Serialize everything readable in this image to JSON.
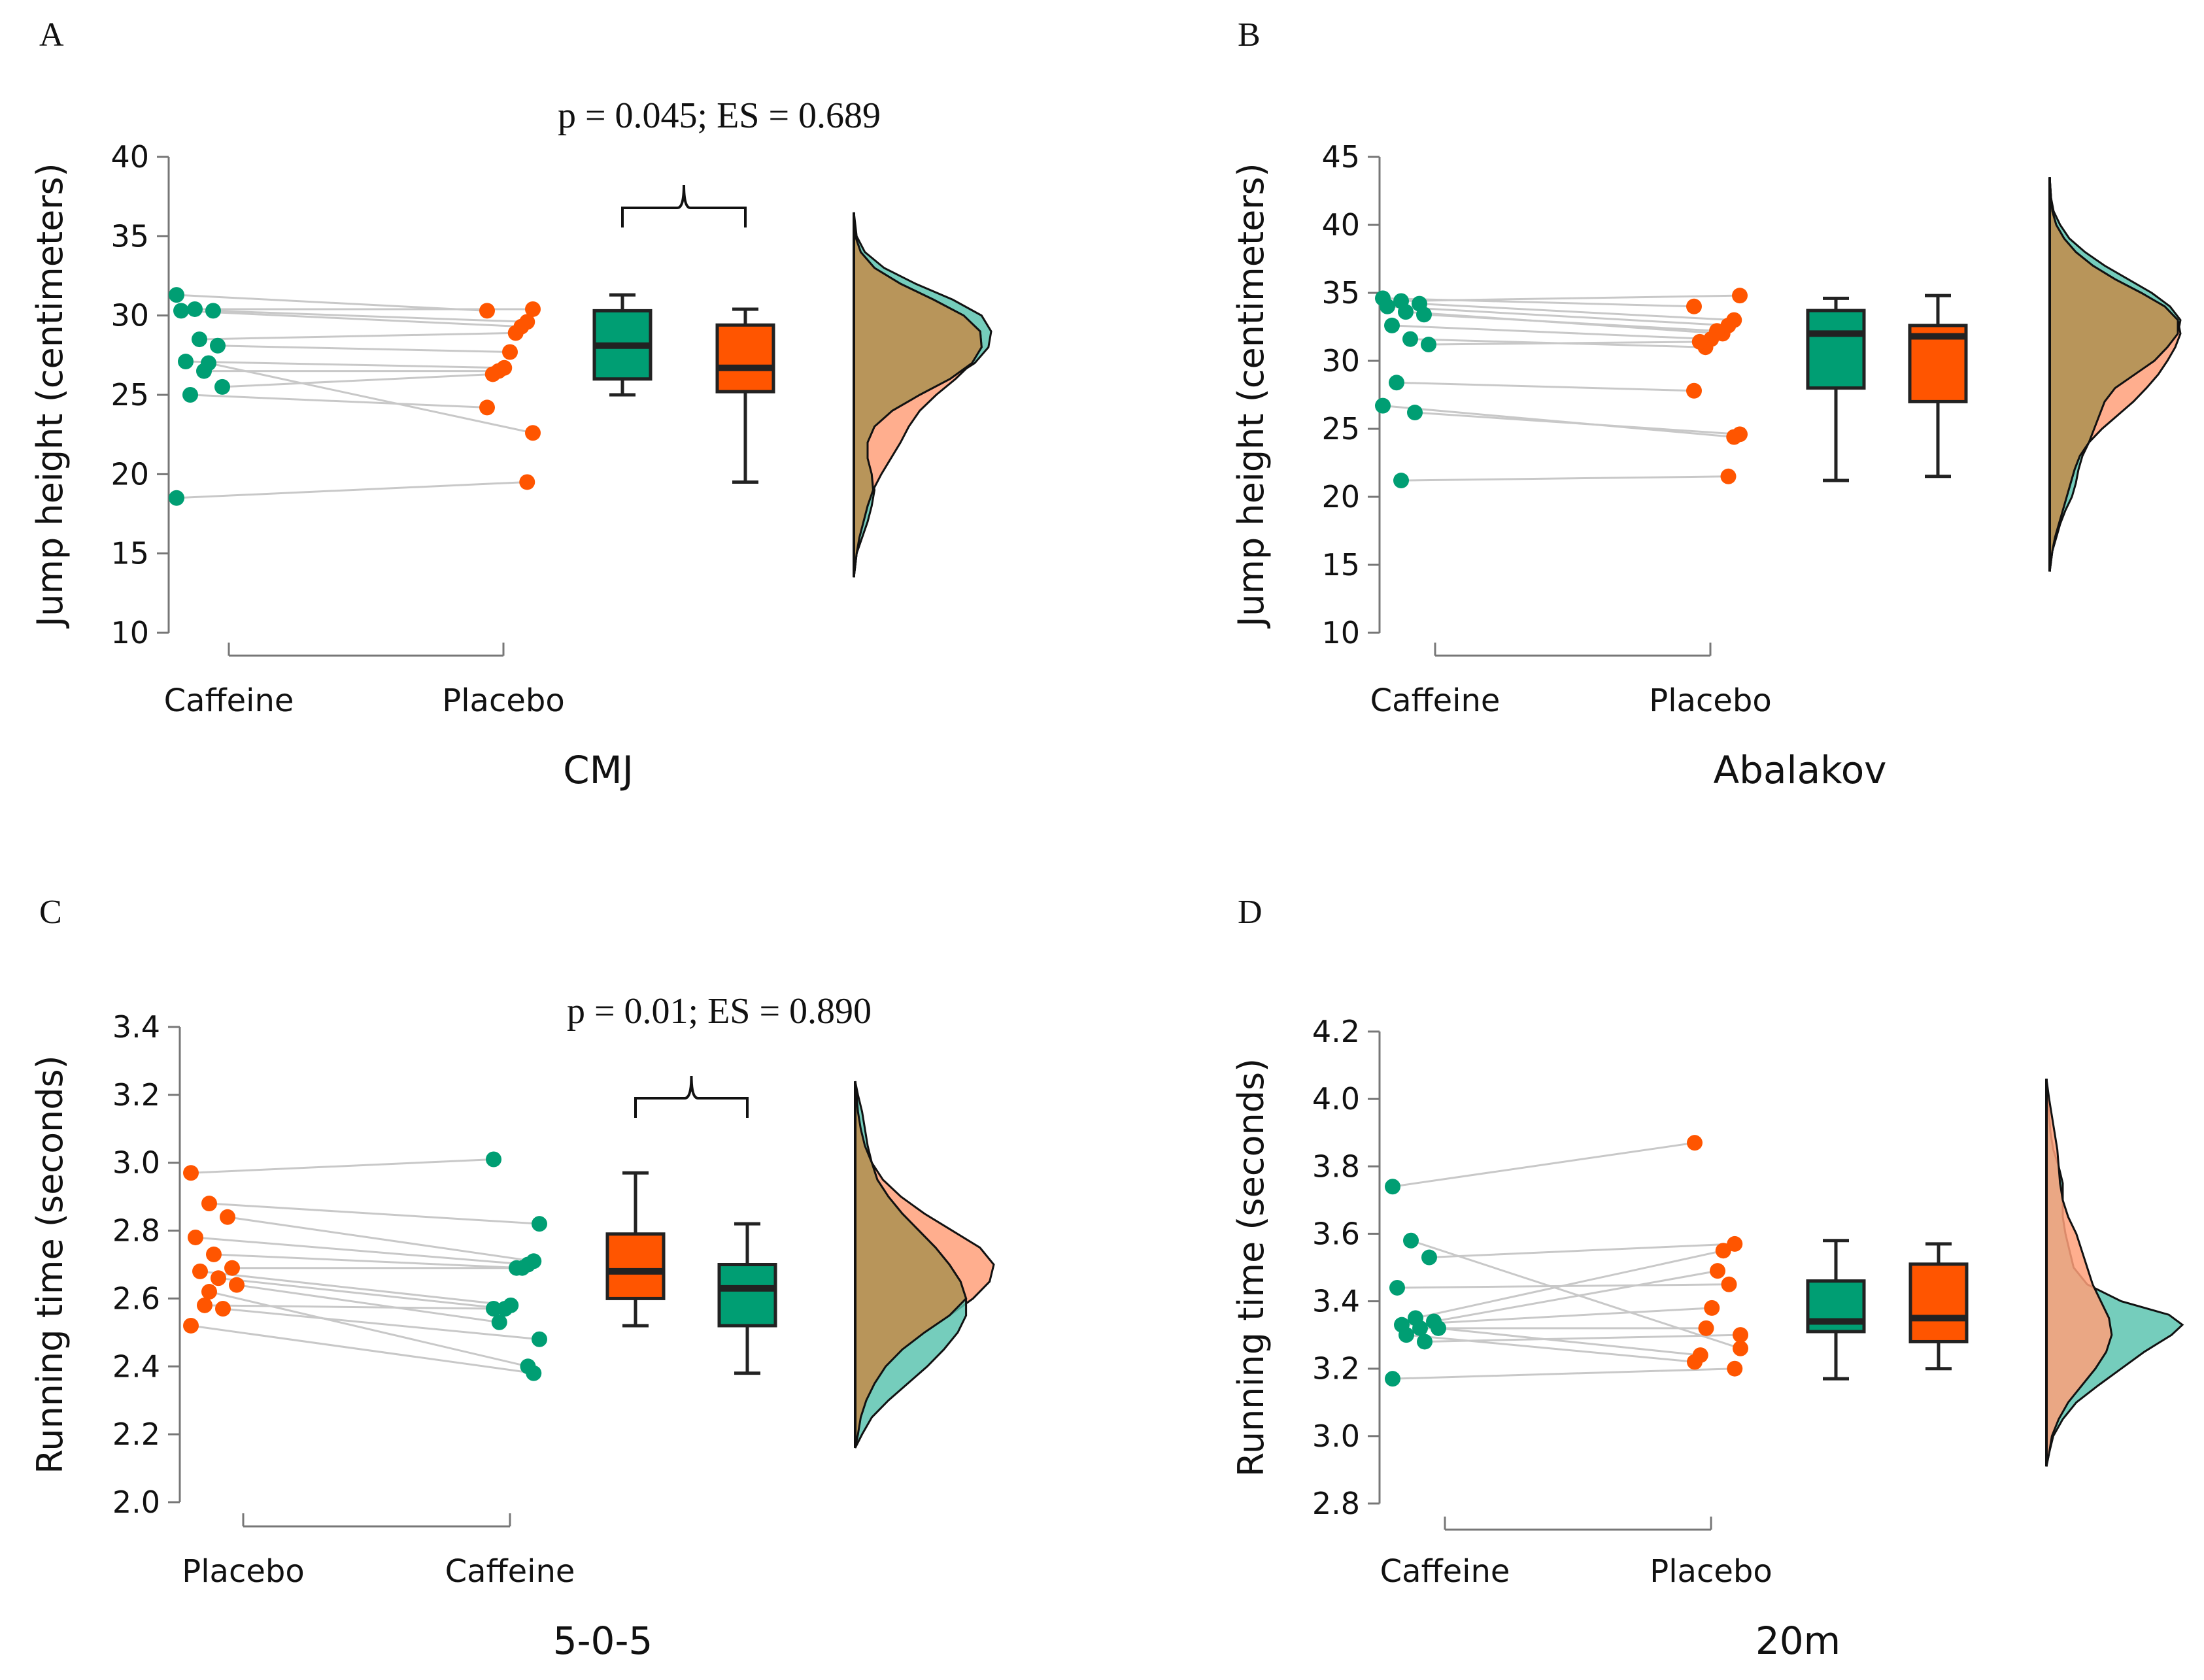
{
  "colors": {
    "caffeine": "#009E73",
    "placebo": "#FF5500",
    "caffeine_density": "#5DC4B0",
    "placebo_density": "#FFA07A",
    "overlap": "#B8955A"
  },
  "chart_data": [
    {
      "panel": "A",
      "type": "raincloud",
      "xlabel": "CMJ",
      "ylabel": "Jump height (centimeters)",
      "ylim": [
        10,
        40
      ],
      "yticks": [
        "10",
        "15",
        "20",
        "25",
        "30",
        "35",
        "40"
      ],
      "groups": [
        "Caffeine",
        "Placebo"
      ],
      "annotation": "p = 0.045; ES = 0.689",
      "pairs": [
        [
          31.3,
          30.3
        ],
        [
          30.4,
          30.4
        ],
        [
          30.3,
          29.6
        ],
        [
          30.3,
          29.3
        ],
        [
          28.5,
          28.9
        ],
        [
          28.1,
          27.7
        ],
        [
          27.1,
          26.7
        ],
        [
          26.5,
          26.5
        ],
        [
          25.5,
          26.3
        ],
        [
          25.0,
          24.2
        ],
        [
          27.0,
          22.6
        ],
        [
          18.5,
          19.5
        ]
      ],
      "boxes": [
        {
          "group": "Caffeine",
          "min": 25.0,
          "q1": 26.0,
          "median": 28.1,
          "q3": 30.3,
          "max": 31.3
        },
        {
          "group": "Placebo",
          "min": 19.5,
          "q1": 25.2,
          "median": 26.7,
          "q3": 29.4,
          "max": 30.4
        }
      ],
      "densities": {
        "Caffeine": [
          [
            13.5,
            0.0
          ],
          [
            15,
            0.02
          ],
          [
            16,
            0.06
          ],
          [
            17,
            0.1
          ],
          [
            18,
            0.13
          ],
          [
            19,
            0.15
          ],
          [
            20,
            0.13
          ],
          [
            21,
            0.1
          ],
          [
            22,
            0.1
          ],
          [
            23,
            0.15
          ],
          [
            24,
            0.28
          ],
          [
            25,
            0.48
          ],
          [
            26,
            0.7
          ],
          [
            27,
            0.88
          ],
          [
            28,
            0.98
          ],
          [
            29,
            1.0
          ],
          [
            30,
            0.93
          ],
          [
            31,
            0.72
          ],
          [
            32,
            0.45
          ],
          [
            33,
            0.22
          ],
          [
            34,
            0.08
          ],
          [
            35,
            0.02
          ],
          [
            36.5,
            0.0
          ]
        ],
        "Placebo": [
          [
            13.5,
            0.0
          ],
          [
            15,
            0.02
          ],
          [
            16,
            0.04
          ],
          [
            17,
            0.07
          ],
          [
            18,
            0.1
          ],
          [
            19,
            0.14
          ],
          [
            20,
            0.2
          ],
          [
            21,
            0.27
          ],
          [
            22,
            0.34
          ],
          [
            23,
            0.4
          ],
          [
            24,
            0.48
          ],
          [
            25,
            0.6
          ],
          [
            26,
            0.74
          ],
          [
            27,
            0.86
          ],
          [
            28,
            0.93
          ],
          [
            29,
            0.92
          ],
          [
            30,
            0.8
          ],
          [
            31,
            0.58
          ],
          [
            32,
            0.34
          ],
          [
            33,
            0.15
          ],
          [
            34,
            0.05
          ],
          [
            35,
            0.01
          ],
          [
            36.5,
            0.0
          ]
        ]
      }
    },
    {
      "panel": "B",
      "type": "raincloud",
      "xlabel": "Abalakov",
      "ylabel": "Jump height (centimeters)",
      "ylim": [
        10,
        45
      ],
      "yticks": [
        "10",
        "15",
        "20",
        "25",
        "30",
        "35",
        "40",
        "45"
      ],
      "groups": [
        "Caffeine",
        "Placebo"
      ],
      "annotation": "",
      "pairs": [
        [
          34.6,
          34.0
        ],
        [
          34.4,
          34.8
        ],
        [
          34.2,
          33.0
        ],
        [
          34.0,
          32.6
        ],
        [
          33.6,
          32.0
        ],
        [
          33.4,
          32.2
        ],
        [
          32.6,
          31.6
        ],
        [
          31.6,
          31.0
        ],
        [
          31.2,
          31.4
        ],
        [
          28.4,
          27.8
        ],
        [
          26.2,
          24.6
        ],
        [
          26.7,
          24.4
        ],
        [
          21.2,
          21.5
        ]
      ],
      "boxes": [
        {
          "group": "Caffeine",
          "min": 21.2,
          "q1": 28.0,
          "median": 32.0,
          "q3": 33.7,
          "max": 34.6
        },
        {
          "group": "Placebo",
          "min": 21.5,
          "q1": 27.0,
          "median": 31.8,
          "q3": 32.6,
          "max": 34.8
        }
      ],
      "densities": {
        "Caffeine": [
          [
            14.5,
            0.0
          ],
          [
            16,
            0.02
          ],
          [
            17,
            0.05
          ],
          [
            18,
            0.08
          ],
          [
            19,
            0.12
          ],
          [
            20,
            0.17
          ],
          [
            21,
            0.2
          ],
          [
            22,
            0.22
          ],
          [
            23,
            0.25
          ],
          [
            24,
            0.3
          ],
          [
            25,
            0.34
          ],
          [
            26,
            0.38
          ],
          [
            27,
            0.42
          ],
          [
            28,
            0.5
          ],
          [
            29,
            0.65
          ],
          [
            30,
            0.8
          ],
          [
            31,
            0.9
          ],
          [
            32,
            0.98
          ],
          [
            33,
            1.0
          ],
          [
            34,
            0.92
          ],
          [
            35,
            0.78
          ],
          [
            36,
            0.6
          ],
          [
            37,
            0.42
          ],
          [
            38,
            0.27
          ],
          [
            39,
            0.15
          ],
          [
            40,
            0.08
          ],
          [
            41,
            0.03
          ],
          [
            42,
            0.01
          ],
          [
            43.5,
            0.0
          ]
        ],
        "Placebo": [
          [
            14.5,
            0.0
          ],
          [
            16,
            0.02
          ],
          [
            17,
            0.04
          ],
          [
            18,
            0.07
          ],
          [
            19,
            0.1
          ],
          [
            20,
            0.13
          ],
          [
            21,
            0.16
          ],
          [
            22,
            0.19
          ],
          [
            23,
            0.23
          ],
          [
            24,
            0.3
          ],
          [
            25,
            0.4
          ],
          [
            26,
            0.52
          ],
          [
            27,
            0.64
          ],
          [
            28,
            0.74
          ],
          [
            29,
            0.83
          ],
          [
            30,
            0.9
          ],
          [
            31,
            0.96
          ],
          [
            32,
            1.0
          ],
          [
            33,
            0.98
          ],
          [
            34,
            0.88
          ],
          [
            35,
            0.7
          ],
          [
            36,
            0.5
          ],
          [
            37,
            0.33
          ],
          [
            38,
            0.2
          ],
          [
            39,
            0.11
          ],
          [
            40,
            0.05
          ],
          [
            41,
            0.02
          ],
          [
            42,
            0.01
          ],
          [
            43.5,
            0.0
          ]
        ]
      }
    },
    {
      "panel": "C",
      "type": "raincloud",
      "xlabel": "5-0-5",
      "ylabel": "Running time (seconds)",
      "ylim": [
        2.0,
        3.4
      ],
      "yticks": [
        "2.0",
        "2.2",
        "2.4",
        "2.6",
        "2.8",
        "3.0",
        "3.2",
        "3.4"
      ],
      "groups": [
        "Placebo",
        "Caffeine"
      ],
      "annotation": "p = 0.01; ES = 0.890",
      "pairs": [
        [
          2.97,
          3.01
        ],
        [
          2.88,
          2.82
        ],
        [
          2.84,
          2.71
        ],
        [
          2.78,
          2.7
        ],
        [
          2.73,
          2.69
        ],
        [
          2.69,
          2.69
        ],
        [
          2.68,
          2.58
        ],
        [
          2.66,
          2.57
        ],
        [
          2.64,
          2.53
        ],
        [
          2.58,
          2.57
        ],
        [
          2.57,
          2.48
        ],
        [
          2.52,
          2.38
        ],
        [
          2.62,
          2.4
        ]
      ],
      "boxes": [
        {
          "group": "Placebo",
          "min": 2.52,
          "q1": 2.6,
          "median": 2.68,
          "q3": 2.79,
          "max": 2.97
        },
        {
          "group": "Caffeine",
          "min": 2.38,
          "q1": 2.52,
          "median": 2.63,
          "q3": 2.7,
          "max": 2.82
        }
      ],
      "densities": {
        "Placebo": [
          [
            2.16,
            0.0
          ],
          [
            2.2,
            0.02
          ],
          [
            2.25,
            0.04
          ],
          [
            2.3,
            0.08
          ],
          [
            2.35,
            0.14
          ],
          [
            2.4,
            0.22
          ],
          [
            2.45,
            0.34
          ],
          [
            2.5,
            0.5
          ],
          [
            2.55,
            0.68
          ],
          [
            2.6,
            0.85
          ],
          [
            2.65,
            0.97
          ],
          [
            2.7,
            1.0
          ],
          [
            2.75,
            0.9
          ],
          [
            2.8,
            0.7
          ],
          [
            2.85,
            0.5
          ],
          [
            2.9,
            0.33
          ],
          [
            2.95,
            0.2
          ],
          [
            3.0,
            0.12
          ],
          [
            3.05,
            0.07
          ],
          [
            3.1,
            0.04
          ],
          [
            3.15,
            0.02
          ],
          [
            3.2,
            0.01
          ],
          [
            3.24,
            0.0
          ]
        ],
        "Caffeine": [
          [
            2.16,
            0.0
          ],
          [
            2.2,
            0.05
          ],
          [
            2.25,
            0.12
          ],
          [
            2.3,
            0.24
          ],
          [
            2.35,
            0.38
          ],
          [
            2.4,
            0.52
          ],
          [
            2.45,
            0.64
          ],
          [
            2.5,
            0.74
          ],
          [
            2.55,
            0.8
          ],
          [
            2.6,
            0.8
          ],
          [
            2.65,
            0.76
          ],
          [
            2.7,
            0.68
          ],
          [
            2.75,
            0.58
          ],
          [
            2.8,
            0.46
          ],
          [
            2.85,
            0.34
          ],
          [
            2.9,
            0.24
          ],
          [
            2.95,
            0.16
          ],
          [
            3.0,
            0.12
          ],
          [
            3.05,
            0.09
          ],
          [
            3.1,
            0.07
          ],
          [
            3.15,
            0.05
          ],
          [
            3.2,
            0.02
          ],
          [
            3.24,
            0.0
          ]
        ]
      }
    },
    {
      "panel": "D",
      "type": "raincloud",
      "xlabel": "20m",
      "ylabel": "Running time (seconds)",
      "ylim": [
        2.8,
        4.2
      ],
      "yticks": [
        "2.8",
        "3.0",
        "3.2",
        "3.4",
        "3.6",
        "3.8",
        "4.0",
        "4.2"
      ],
      "groups": [
        "Caffeine",
        "Placebo"
      ],
      "annotation": "",
      "pairs": [
        [
          3.74,
          3.87
        ],
        [
          3.58,
          3.26
        ],
        [
          3.53,
          3.57
        ],
        [
          3.44,
          3.45
        ],
        [
          3.35,
          3.55
        ],
        [
          3.34,
          3.49
        ],
        [
          3.33,
          3.38
        ],
        [
          3.32,
          3.32
        ],
        [
          3.32,
          3.24
        ],
        [
          3.3,
          3.22
        ],
        [
          3.28,
          3.3
        ],
        [
          3.17,
          3.2
        ]
      ],
      "boxes": [
        {
          "group": "Caffeine",
          "min": 3.17,
          "q1": 3.31,
          "median": 3.34,
          "q3": 3.46,
          "max": 3.58
        },
        {
          "group": "Placebo",
          "min": 3.2,
          "q1": 3.28,
          "median": 3.35,
          "q3": 3.51,
          "max": 3.57
        }
      ],
      "densities": {
        "Caffeine": [
          [
            2.91,
            0.0
          ],
          [
            2.95,
            0.02
          ],
          [
            3.0,
            0.05
          ],
          [
            3.05,
            0.12
          ],
          [
            3.1,
            0.22
          ],
          [
            3.15,
            0.38
          ],
          [
            3.2,
            0.55
          ],
          [
            3.25,
            0.72
          ],
          [
            3.3,
            0.92
          ],
          [
            3.33,
            1.0
          ],
          [
            3.36,
            0.9
          ],
          [
            3.4,
            0.55
          ],
          [
            3.45,
            0.3
          ],
          [
            3.5,
            0.2
          ],
          [
            3.55,
            0.17
          ],
          [
            3.6,
            0.14
          ],
          [
            3.65,
            0.12
          ],
          [
            3.7,
            0.12
          ],
          [
            3.75,
            0.12
          ],
          [
            3.8,
            0.09
          ],
          [
            3.85,
            0.05
          ],
          [
            3.9,
            0.03
          ],
          [
            3.95,
            0.02
          ],
          [
            4.0,
            0.01
          ],
          [
            4.06,
            0.0
          ]
        ],
        "Placebo": [
          [
            2.91,
            0.0
          ],
          [
            2.95,
            0.02
          ],
          [
            3.0,
            0.04
          ],
          [
            3.05,
            0.09
          ],
          [
            3.1,
            0.16
          ],
          [
            3.15,
            0.26
          ],
          [
            3.2,
            0.36
          ],
          [
            3.25,
            0.44
          ],
          [
            3.3,
            0.48
          ],
          [
            3.35,
            0.46
          ],
          [
            3.4,
            0.4
          ],
          [
            3.45,
            0.34
          ],
          [
            3.5,
            0.3
          ],
          [
            3.55,
            0.26
          ],
          [
            3.6,
            0.22
          ],
          [
            3.65,
            0.16
          ],
          [
            3.7,
            0.12
          ],
          [
            3.75,
            0.1
          ],
          [
            3.8,
            0.09
          ],
          [
            3.85,
            0.08
          ],
          [
            3.9,
            0.06
          ],
          [
            3.95,
            0.04
          ],
          [
            4.0,
            0.02
          ],
          [
            4.06,
            0.0
          ]
        ]
      }
    }
  ]
}
